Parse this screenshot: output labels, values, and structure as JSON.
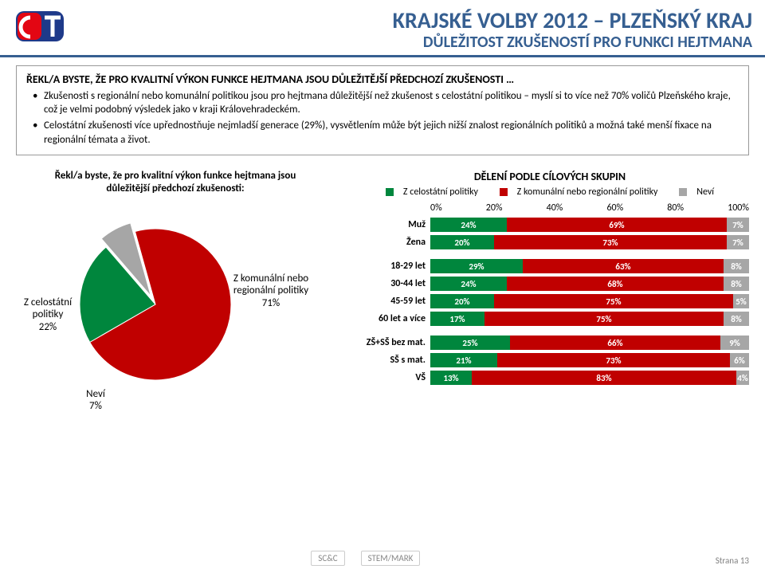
{
  "header": {
    "title_main": "KRAJSKÉ VOLBY 2012 – PLZEŇSKÝ KRAJ",
    "title_sub": "DŮLEŽITOST ZKUŠENOSTÍ PRO FUNKCI HEJTMANA",
    "title_color": "#365f91"
  },
  "summary": {
    "lead": "ŘEKL/A BYSTE, ŽE PRO KVALITNÍ VÝKON FUNKCE HEJTMANA JSOU DŮLEŽITĚJŠÍ PŘEDCHOZÍ ZKUŠENOSTI …",
    "bullets": [
      "Zkušenosti s regionální nebo komunální politikou jsou pro hejtmana důležitější než zkušenost s celostátní politikou – myslí si to více než 70% voličů Plzeňského kraje, což je velmi podobný výsledek jako v kraji Královehradeckém.",
      "Celostátní zkušenosti více upřednostňuje nejmladší generace (29%), vysvětlením může být jejich nižší znalost regionálních politiků a možná také menší fixace na regionální témata a život."
    ]
  },
  "pie": {
    "title": "Řekl/a byste, že pro kvalitní výkon funkce hejtmana jsou důležitější předchozí zkušenosti:",
    "slices": [
      {
        "label": "Z komunální nebo regionální politiky",
        "value": 71,
        "pct_text": "71%",
        "color": "#c00000"
      },
      {
        "label": "Z celostátní politiky",
        "value": 22,
        "pct_text": "22%",
        "color": "#00863d"
      },
      {
        "label": "Neví",
        "value": 7,
        "pct_text": "7%",
        "color": "#a6a6a6"
      }
    ],
    "background": "#ffffff"
  },
  "bars": {
    "title": "DĚLENÍ PODLE CÍLOVÝCH SKUPIN",
    "legend": [
      {
        "label": "Z celostátní politiky",
        "color": "#00863d"
      },
      {
        "label": "Z komunální nebo regionální politiky",
        "color": "#c00000"
      },
      {
        "label": "Neví",
        "color": "#a6a6a6"
      }
    ],
    "axis": {
      "min": 0,
      "max": 100,
      "ticks": [
        "0%",
        "20%",
        "40%",
        "60%",
        "80%",
        "100%"
      ]
    },
    "groups": [
      {
        "rows": [
          {
            "label": "Muž",
            "segs": [
              {
                "v": 24,
                "t": "24%",
                "c": "#00863d"
              },
              {
                "v": 69,
                "t": "69%",
                "c": "#c00000"
              },
              {
                "v": 7,
                "t": "7%",
                "c": "#a6a6a6"
              }
            ]
          },
          {
            "label": "Žena",
            "segs": [
              {
                "v": 20,
                "t": "20%",
                "c": "#00863d"
              },
              {
                "v": 73,
                "t": "73%",
                "c": "#c00000"
              },
              {
                "v": 7,
                "t": "7%",
                "c": "#a6a6a6"
              }
            ]
          }
        ]
      },
      {
        "rows": [
          {
            "label": "18-29 let",
            "segs": [
              {
                "v": 29,
                "t": "29%",
                "c": "#00863d"
              },
              {
                "v": 63,
                "t": "63%",
                "c": "#c00000"
              },
              {
                "v": 8,
                "t": "8%",
                "c": "#a6a6a6"
              }
            ]
          },
          {
            "label": "30-44 let",
            "segs": [
              {
                "v": 24,
                "t": "24%",
                "c": "#00863d"
              },
              {
                "v": 68,
                "t": "68%",
                "c": "#c00000"
              },
              {
                "v": 8,
                "t": "8%",
                "c": "#a6a6a6"
              }
            ]
          },
          {
            "label": "45-59 let",
            "segs": [
              {
                "v": 20,
                "t": "20%",
                "c": "#00863d"
              },
              {
                "v": 75,
                "t": "75%",
                "c": "#c00000"
              },
              {
                "v": 5,
                "t": "5%",
                "c": "#a6a6a6"
              }
            ]
          },
          {
            "label": "60 let a více",
            "segs": [
              {
                "v": 17,
                "t": "17%",
                "c": "#00863d"
              },
              {
                "v": 75,
                "t": "75%",
                "c": "#c00000"
              },
              {
                "v": 8,
                "t": "8%",
                "c": "#a6a6a6"
              }
            ]
          }
        ]
      },
      {
        "rows": [
          {
            "label": "ZŠ+SŠ bez mat.",
            "segs": [
              {
                "v": 25,
                "t": "25%",
                "c": "#00863d"
              },
              {
                "v": 66,
                "t": "66%",
                "c": "#c00000"
              },
              {
                "v": 9,
                "t": "9%",
                "c": "#a6a6a6"
              }
            ]
          },
          {
            "label": "SŠ s mat.",
            "segs": [
              {
                "v": 21,
                "t": "21%",
                "c": "#00863d"
              },
              {
                "v": 73,
                "t": "73%",
                "c": "#c00000"
              },
              {
                "v": 6,
                "t": "6%",
                "c": "#a6a6a6"
              }
            ]
          },
          {
            "label": "VŠ",
            "segs": [
              {
                "v": 13,
                "t": "13%",
                "c": "#00863d"
              },
              {
                "v": 83,
                "t": "83%",
                "c": "#c00000"
              },
              {
                "v": 4,
                "t": "4%",
                "c": "#a6a6a6"
              }
            ]
          }
        ]
      }
    ]
  },
  "footer": {
    "logo1": "SC&C",
    "logo2": "STEM/MARK",
    "page": "Strana 13"
  }
}
